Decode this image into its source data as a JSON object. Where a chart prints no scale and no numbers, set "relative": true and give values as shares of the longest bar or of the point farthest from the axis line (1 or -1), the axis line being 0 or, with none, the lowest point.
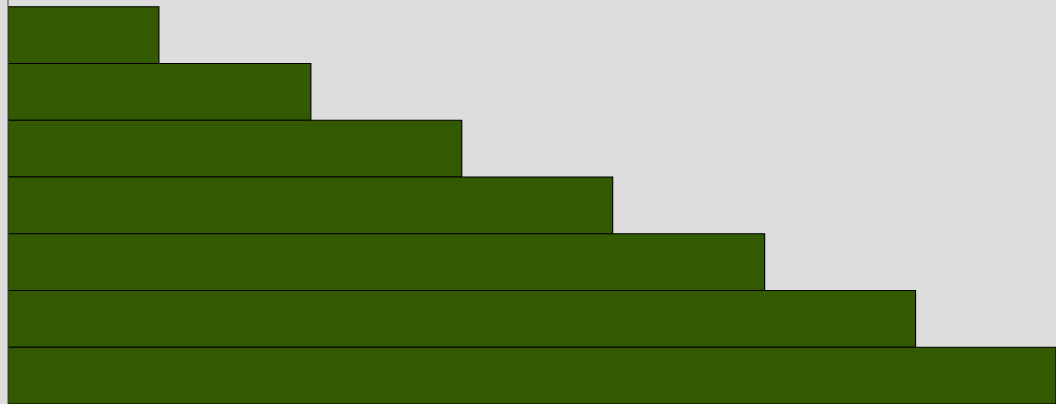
{
  "chart_data": {
    "type": "bar",
    "orientation": "horizontal",
    "relative": true,
    "categories": [
      null,
      null,
      null,
      null,
      null,
      null,
      null
    ],
    "values": [
      0.144,
      0.289,
      0.433,
      0.577,
      0.722,
      0.866,
      1
    ],
    "color": "#335a00",
    "grid": false,
    "legend": false
  }
}
